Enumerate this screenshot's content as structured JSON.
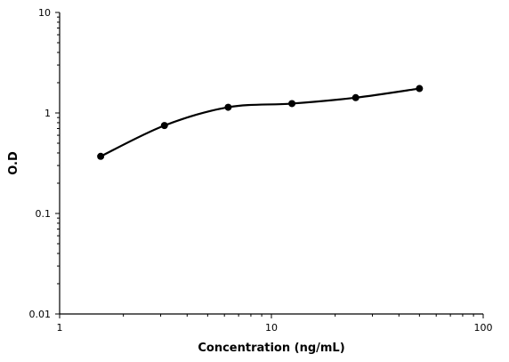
{
  "chart_data": {
    "type": "line",
    "title": "",
    "xlabel": "Concentration (ng/mL)",
    "ylabel": "O.D",
    "x_scale": "log",
    "y_scale": "log",
    "xlim": [
      1,
      100
    ],
    "ylim": [
      0.01,
      10
    ],
    "x_ticks": [
      1,
      10,
      100
    ],
    "x_tick_labels": [
      "1",
      "10",
      "100"
    ],
    "y_ticks": [
      0.01,
      0.1,
      1,
      10
    ],
    "y_tick_labels": [
      "0.01",
      "0.1",
      "1",
      "10"
    ],
    "grid": false,
    "legend": "none",
    "line_color": "#000000",
    "series": [
      {
        "x": [
          1.5625,
          3.125,
          6.25,
          12.5,
          25,
          50
        ],
        "y": [
          0.37,
          0.75,
          1.14,
          1.24,
          1.42,
          1.75
        ]
      }
    ]
  }
}
